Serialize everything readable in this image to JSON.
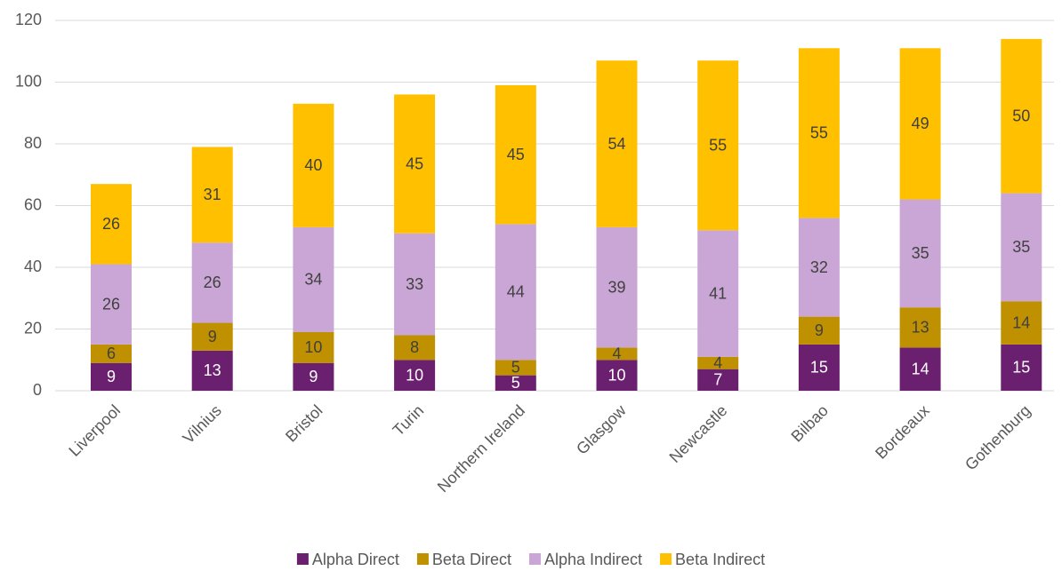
{
  "chart_data": {
    "type": "bar",
    "stacked": true,
    "categories": [
      "Liverpool",
      "Vilnius",
      "Bristol",
      "Turin",
      "Northern Ireland",
      "Glasgow",
      "Newcastle",
      "Bilbao",
      "Bordeaux",
      "Gothenburg"
    ],
    "series": [
      {
        "name": "Alpha Direct",
        "color": "#6b1f6f",
        "values": [
          9,
          13,
          9,
          10,
          5,
          10,
          7,
          15,
          14,
          15
        ]
      },
      {
        "name": "Beta Direct",
        "color": "#bf9000",
        "values": [
          6,
          9,
          10,
          8,
          5,
          4,
          4,
          9,
          13,
          14
        ]
      },
      {
        "name": "Alpha Indirect",
        "color": "#c9a6d5",
        "values": [
          26,
          26,
          34,
          33,
          44,
          39,
          41,
          32,
          35,
          35
        ]
      },
      {
        "name": "Beta Indirect",
        "color": "#ffc000",
        "values": [
          26,
          31,
          40,
          45,
          45,
          54,
          55,
          55,
          49,
          50
        ]
      }
    ],
    "ylim": [
      0,
      120
    ],
    "yticks": [
      0,
      20,
      40,
      60,
      80,
      100,
      120
    ],
    "grid": true,
    "legend": "bottom"
  }
}
